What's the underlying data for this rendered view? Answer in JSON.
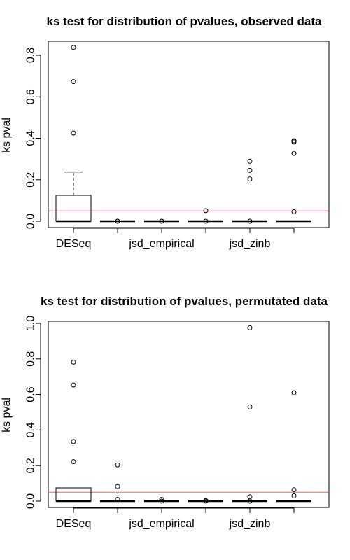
{
  "chart_data": [
    {
      "type": "box",
      "title": "ks test for distribution of pvalues, observed data",
      "ylabel": "ks pval",
      "ylim": [
        0,
        0.85
      ],
      "yticks": [
        0.0,
        0.2,
        0.4,
        0.6,
        0.8
      ],
      "ytick_labels": [
        "0.0",
        "0.2",
        "0.4",
        "0.6",
        "0.8"
      ],
      "categories": [
        "DESeq",
        "",
        "jsd_empirical",
        "",
        "jsd_zinb",
        ""
      ],
      "shown_category_labels": [
        "DESeq",
        "jsd_empirical",
        "jsd_zinb"
      ],
      "reference_line": {
        "y": 0.05,
        "color": "#ee6666"
      },
      "boxes": [
        {
          "q1": 0.0,
          "median": 0.0,
          "q3": 0.125,
          "whisker_low": 0.0,
          "whisker_high": 0.237,
          "outliers": [
            0.425,
            0.673,
            0.838
          ]
        },
        {
          "q1": 0.0,
          "median": 0.0,
          "q3": 0.0,
          "whisker_low": 0.0,
          "whisker_high": 0.0,
          "outliers": [
            0.0,
            0.0
          ]
        },
        {
          "q1": 0.0,
          "median": 0.0,
          "q3": 0.0,
          "whisker_low": 0.0,
          "whisker_high": 0.0,
          "outliers": [
            0.0,
            0.0
          ]
        },
        {
          "q1": 0.0,
          "median": 0.0,
          "q3": 0.0,
          "whisker_low": 0.0,
          "whisker_high": 0.0,
          "outliers": [
            0.051,
            0.0
          ]
        },
        {
          "q1": 0.0,
          "median": 0.0,
          "q3": 0.0,
          "whisker_low": 0.0,
          "whisker_high": 0.0,
          "outliers": [
            0.289,
            0.245,
            0.204,
            0.0
          ]
        },
        {
          "q1": 0.0,
          "median": 0.0,
          "q3": 0.0,
          "whisker_low": 0.0,
          "whisker_high": 0.0,
          "outliers": [
            0.388,
            0.382,
            0.327,
            0.046
          ]
        }
      ]
    },
    {
      "type": "box",
      "title": "ks test for distribution of pvalues, permutated data",
      "ylabel": "ks pval",
      "ylim": [
        0,
        1.0
      ],
      "yticks": [
        0.0,
        0.2,
        0.4,
        0.6,
        0.8,
        1.0
      ],
      "ytick_labels": [
        "0.0",
        "0.2",
        "0.4",
        "0.6",
        "0.8",
        "1.0"
      ],
      "categories": [
        "DESeq",
        "",
        "jsd_empirical",
        "",
        "jsd_zinb",
        ""
      ],
      "shown_category_labels": [
        "DESeq",
        "jsd_empirical",
        "jsd_zinb"
      ],
      "reference_line": {
        "y": 0.05,
        "color": "#ee6666"
      },
      "boxes": [
        {
          "q1": 0.0,
          "median": 0.0,
          "q3": 0.075,
          "whisker_low": 0.0,
          "whisker_high": 0.075,
          "outliers": [
            0.222,
            0.335,
            0.653,
            0.782
          ]
        },
        {
          "q1": 0.0,
          "median": 0.0,
          "q3": 0.0,
          "whisker_low": 0.0,
          "whisker_high": 0.0,
          "outliers": [
            0.204,
            0.082,
            0.01
          ]
        },
        {
          "q1": 0.0,
          "median": 0.0,
          "q3": 0.0,
          "whisker_low": 0.0,
          "whisker_high": 0.0,
          "outliers": [
            0.01,
            0.0
          ]
        },
        {
          "q1": 0.0,
          "median": 0.0,
          "q3": 0.0,
          "whisker_low": 0.0,
          "whisker_high": 0.0,
          "outliers": [
            0.003,
            0.0
          ]
        },
        {
          "q1": 0.0,
          "median": 0.0,
          "q3": 0.0,
          "whisker_low": 0.0,
          "whisker_high": 0.0,
          "outliers": [
            0.975,
            0.53,
            0.024,
            0.0
          ]
        },
        {
          "q1": 0.0,
          "median": 0.0,
          "q3": 0.0,
          "whisker_low": 0.0,
          "whisker_high": 0.0,
          "outliers": [
            0.61,
            0.064,
            0.03
          ]
        }
      ]
    }
  ]
}
